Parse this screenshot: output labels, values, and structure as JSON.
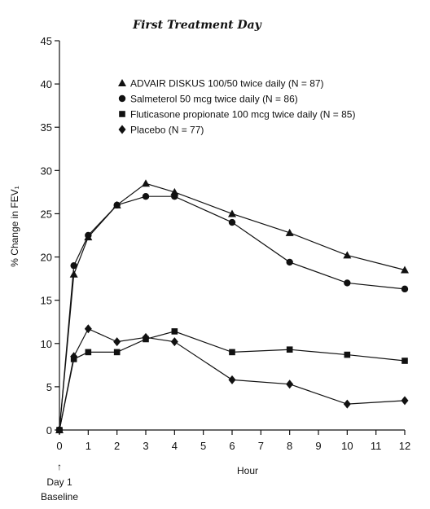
{
  "chart_data": {
    "type": "line",
    "title": "First Treatment Day",
    "xlabel": "Hour",
    "ylabel": "% Change in FEV₁",
    "baseline_arrow": "↑",
    "baseline_line1": "Day 1",
    "baseline_line2": "Baseline",
    "xlim": [
      0,
      12
    ],
    "ylim": [
      0,
      45
    ],
    "xticks": [
      0,
      1,
      2,
      3,
      4,
      5,
      6,
      7,
      8,
      9,
      10,
      11,
      12
    ],
    "yticks": [
      0,
      5,
      10,
      15,
      20,
      25,
      30,
      35,
      40,
      45
    ],
    "grid": false,
    "legend_position": "top-left",
    "series": [
      {
        "name": "ADVAIR DISKUS 100/50 twice daily (N = 87)",
        "marker": "triangle",
        "x": [
          0,
          0.5,
          1,
          2,
          3,
          4,
          6,
          8,
          10,
          12
        ],
        "y": [
          0,
          18,
          22.3,
          26,
          28.5,
          27.5,
          25,
          22.8,
          20.2,
          18.5
        ]
      },
      {
        "name": "Salmeterol 50 mcg twice daily (N = 86)",
        "marker": "circle",
        "x": [
          0,
          0.5,
          1,
          2,
          3,
          4,
          6,
          8,
          10,
          12
        ],
        "y": [
          0,
          19,
          22.5,
          26,
          27,
          27,
          24,
          19.4,
          17,
          16.3
        ]
      },
      {
        "name": "Fluticasone propionate 100 mcg twice daily (N = 85)",
        "marker": "square",
        "x": [
          0,
          0.5,
          1,
          2,
          3,
          4,
          6,
          8,
          10,
          12
        ],
        "y": [
          0,
          8.2,
          9,
          9,
          10.5,
          11.4,
          9,
          9.3,
          8.7,
          8
        ]
      },
      {
        "name": "Placebo (N = 77)",
        "marker": "diamond",
        "x": [
          0,
          0.5,
          1,
          2,
          3,
          4,
          6,
          8,
          10,
          12
        ],
        "y": [
          0,
          8.5,
          11.7,
          10.2,
          10.7,
          10.2,
          5.8,
          5.3,
          3,
          3.4
        ]
      }
    ]
  }
}
